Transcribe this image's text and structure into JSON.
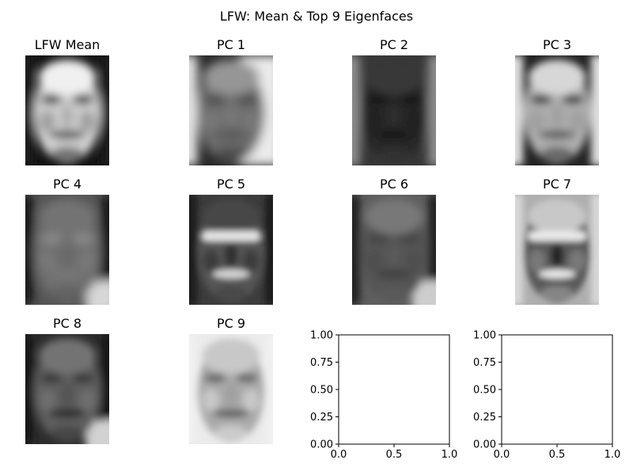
{
  "figure": {
    "title": "LFW: Mean & Top 9 Eigenfaces"
  },
  "panels": [
    {
      "title": "LFW Mean",
      "variant": "mean"
    },
    {
      "title": "PC 1",
      "variant": "pc1"
    },
    {
      "title": "PC 2",
      "variant": "pc2"
    },
    {
      "title": "PC 3",
      "variant": "pc3"
    },
    {
      "title": "PC 4",
      "variant": "pc4"
    },
    {
      "title": "PC 5",
      "variant": "pc5"
    },
    {
      "title": "PC 6",
      "variant": "pc6"
    },
    {
      "title": "PC 7",
      "variant": "pc7"
    },
    {
      "title": "PC 8",
      "variant": "pc8"
    },
    {
      "title": "PC 9",
      "variant": "pc9"
    }
  ],
  "chart_data": [
    {
      "type": "heatmap",
      "title": "LFW Mean",
      "colormap": "gray"
    },
    {
      "type": "heatmap",
      "title": "PC 1",
      "colormap": "gray"
    },
    {
      "type": "heatmap",
      "title": "PC 2",
      "colormap": "gray"
    },
    {
      "type": "heatmap",
      "title": "PC 3",
      "colormap": "gray"
    },
    {
      "type": "heatmap",
      "title": "PC 4",
      "colormap": "gray"
    },
    {
      "type": "heatmap",
      "title": "PC 5",
      "colormap": "gray"
    },
    {
      "type": "heatmap",
      "title": "PC 6",
      "colormap": "gray"
    },
    {
      "type": "heatmap",
      "title": "PC 7",
      "colormap": "gray"
    },
    {
      "type": "heatmap",
      "title": "PC 8",
      "colormap": "gray"
    },
    {
      "type": "heatmap",
      "title": "PC 9",
      "colormap": "gray"
    }
  ],
  "empty_axes": [
    {
      "xlim": [
        0.0,
        1.0
      ],
      "ylim": [
        0.0,
        1.0
      ],
      "xticks": [
        "0.0",
        "0.5",
        "1.0"
      ],
      "yticks": [
        "0.00",
        "0.25",
        "0.50",
        "0.75",
        "1.00"
      ]
    },
    {
      "xlim": [
        0.0,
        1.0
      ],
      "ylim": [
        0.0,
        1.0
      ],
      "xticks": [
        "0.0",
        "0.5",
        "1.0"
      ],
      "yticks": [
        "0.00",
        "0.25",
        "0.50",
        "0.75",
        "1.00"
      ]
    }
  ]
}
